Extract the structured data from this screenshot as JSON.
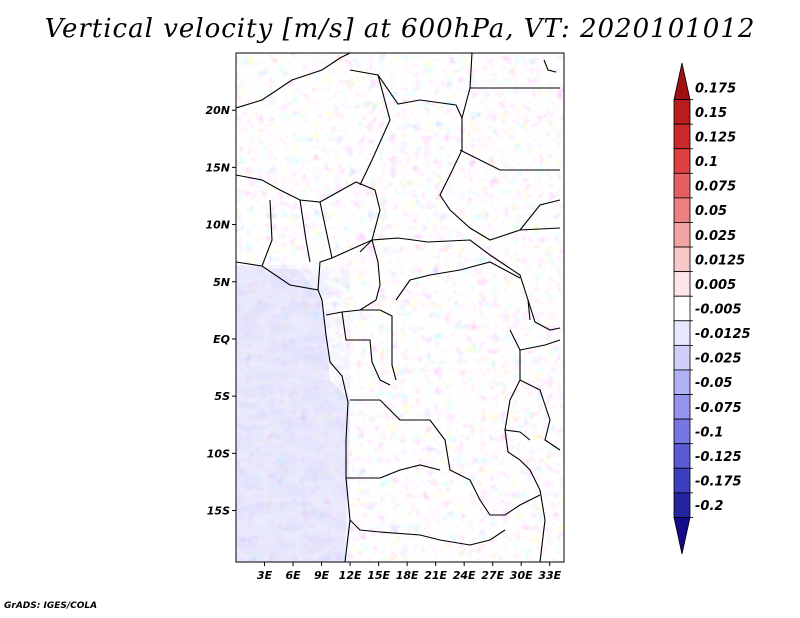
{
  "title": "Vertical velocity [m/s] at 600hPa, VT: 2020101012",
  "footer": "GrADS: IGES/COLA",
  "map": {
    "lat_labels": [
      "20N",
      "15N",
      "10N",
      "5N",
      "EQ",
      "5S",
      "10S",
      "15S"
    ],
    "lat_values": [
      20,
      15,
      10,
      5,
      0,
      -5,
      -10,
      -15
    ],
    "lon_labels": [
      "3E",
      "6E",
      "9E",
      "12E",
      "15E",
      "18E",
      "21E",
      "24E",
      "27E",
      "30E",
      "33E"
    ],
    "lon_values": [
      3,
      6,
      9,
      12,
      15,
      18,
      21,
      24,
      27,
      30,
      33
    ],
    "lon_range": [
      0,
      34.5
    ],
    "lat_range": [
      -19.5,
      25
    ]
  },
  "colorbar": {
    "labels": [
      "0.175",
      "0.15",
      "0.125",
      "0.1",
      "0.075",
      "0.05",
      "0.025",
      "0.0125",
      "0.005",
      "-0.005",
      "-0.0125",
      "-0.025",
      "-0.05",
      "-0.075",
      "-0.1",
      "-0.125",
      "-0.175",
      "-0.2"
    ],
    "colors": [
      "#a01010",
      "#b81c1c",
      "#cc2a2a",
      "#dd4040",
      "#e46060",
      "#ec8080",
      "#f2a4a4",
      "#f8c8c8",
      "#fce6e6",
      "#ffffff",
      "#e8e8ff",
      "#cfcffb",
      "#b0b0f4",
      "#9494ee",
      "#7777e2",
      "#5a5ad4",
      "#3e3ec0",
      "#2424a0",
      "#140a8c"
    ]
  }
}
